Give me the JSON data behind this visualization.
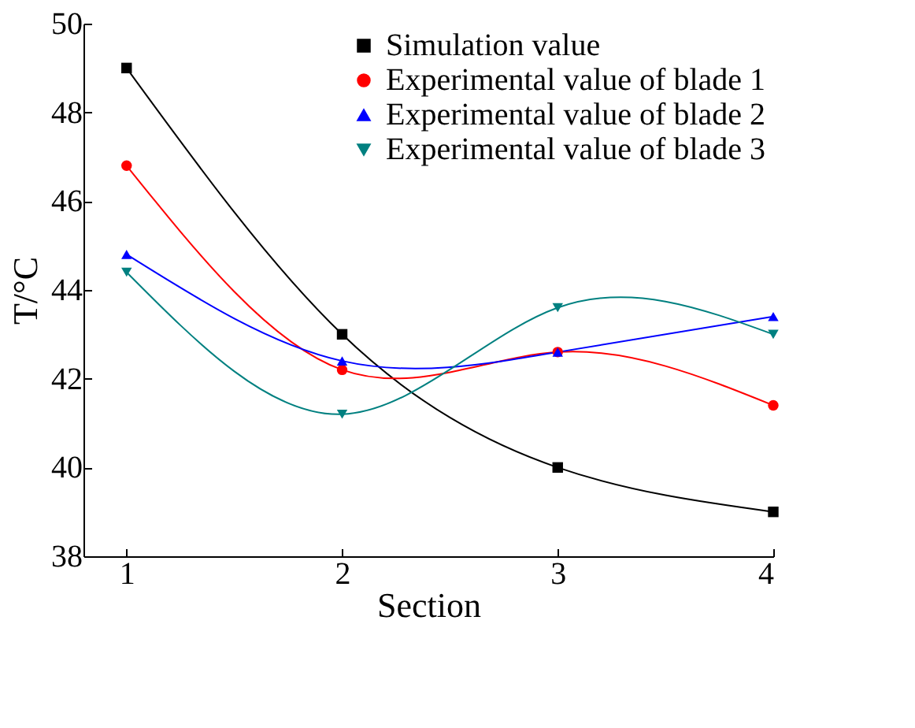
{
  "chart_data": {
    "type": "line",
    "xlabel": "Section",
    "ylabel": "T/°C",
    "x": [
      1,
      2,
      3,
      4
    ],
    "xlim": [
      0.8,
      4
    ],
    "xticks": [
      1,
      2,
      3,
      4
    ],
    "ylim": [
      38,
      50
    ],
    "yticks": [
      38,
      40,
      42,
      44,
      46,
      48,
      50
    ],
    "grid": false,
    "legend": "top right",
    "line_style": "solid",
    "series": [
      {
        "name": "Simulation value",
        "color": "#000000",
        "marker": "square",
        "values": [
          49,
          43,
          40,
          39
        ]
      },
      {
        "name": "Experimental value of blade 1",
        "color": "#ff0000",
        "marker": "circle",
        "values": [
          46.8,
          42.2,
          42.6,
          41.4
        ]
      },
      {
        "name": "Experimental value of blade 2",
        "color": "#0000ff",
        "marker": "triangle",
        "values": [
          44.8,
          42.4,
          42.6,
          43.4
        ]
      },
      {
        "name": "Experimental value of blade 3",
        "color": "#008080",
        "marker": "triangle-down",
        "values": [
          44.4,
          41.2,
          43.6,
          43.0
        ]
      }
    ]
  }
}
